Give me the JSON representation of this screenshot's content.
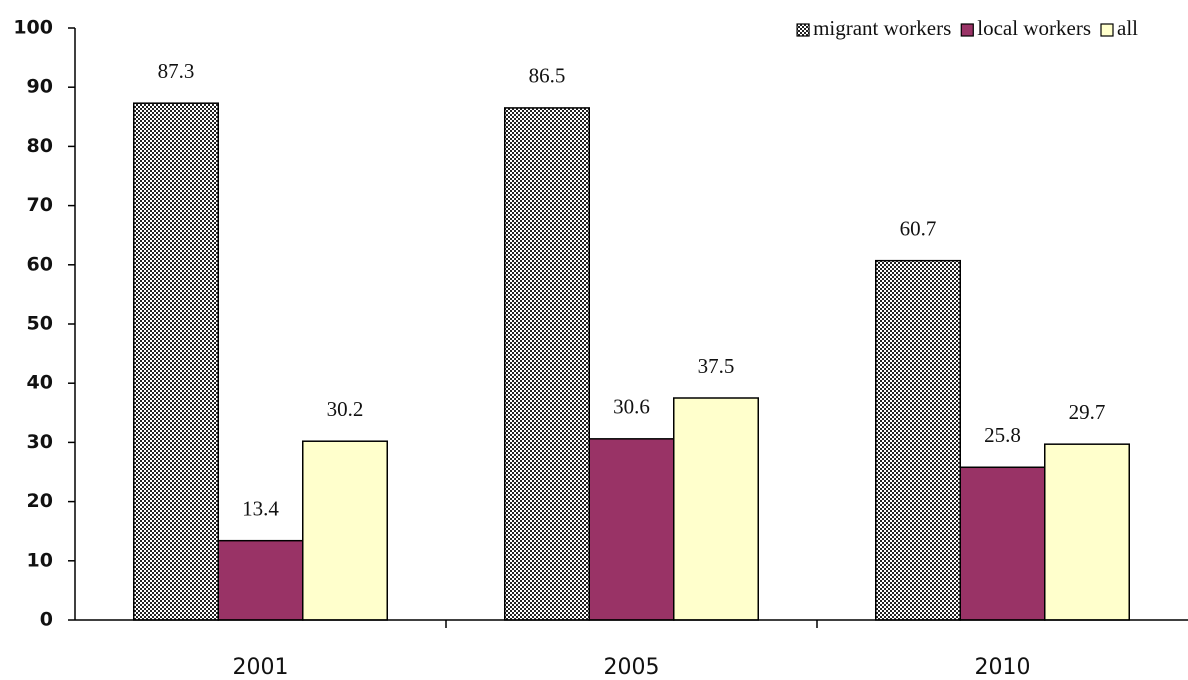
{
  "chart_data": {
    "type": "bar",
    "categories": [
      "2001",
      "2005",
      "2010"
    ],
    "series": [
      {
        "name": "migrant workers",
        "color": "#888888",
        "pattern": "checker",
        "values": [
          87.3,
          86.5,
          60.7
        ]
      },
      {
        "name": "local workers",
        "color": "#993366",
        "values": [
          13.4,
          30.6,
          25.8
        ]
      },
      {
        "name": "all",
        "color": "#ffffcc",
        "values": [
          30.2,
          37.5,
          29.7
        ]
      }
    ],
    "ylim": [
      0,
      100
    ],
    "yticks": [
      0,
      10,
      20,
      30,
      40,
      50,
      60,
      70,
      80,
      90,
      100
    ],
    "grid": false,
    "legend": "top-right",
    "data_labels": true
  }
}
